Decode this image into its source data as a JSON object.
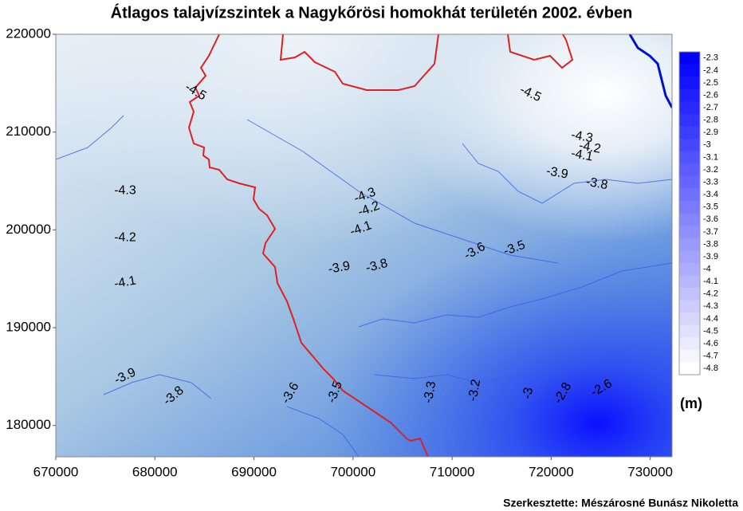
{
  "chart_data": {
    "type": "contour",
    "title": "Átlagos talajvízszintek a Nagykőrösi homokhát területén 2002. évben",
    "unit_label": "(m)",
    "credit": "Szerkesztette: Mészárosné Bunász Nikoletta",
    "xlim": [
      670000,
      732200
    ],
    "ylim": [
      176800,
      220000
    ],
    "xticks": [
      670000,
      680000,
      690000,
      700000,
      710000,
      720000,
      730000
    ],
    "yticks": [
      180000,
      190000,
      200000,
      210000,
      220000
    ],
    "colormap": [
      "#ffffff",
      "#0000ff"
    ],
    "levels": [
      -2.3,
      -2.4,
      -2.5,
      -2.6,
      -2.7,
      -2.8,
      -2.9,
      -3,
      -3.1,
      -3.2,
      -3.3,
      -3.4,
      -3.5,
      -3.6,
      -3.7,
      -3.8,
      -3.9,
      -4,
      -4.1,
      -4.2,
      -4.3,
      -4.4,
      -4.5,
      -4.6,
      -4.7,
      -4.8
    ],
    "contour_labels": [
      {
        "value": -4.5,
        "x": 684100,
        "y": 214100
      },
      {
        "value": -4.5,
        "x": 717900,
        "y": 213900
      },
      {
        "value": -4.3,
        "x": 723100,
        "y": 209500
      },
      {
        "value": -4.2,
        "x": 723900,
        "y": 208400
      },
      {
        "value": -4.1,
        "x": 723100,
        "y": 207600
      },
      {
        "value": -3.9,
        "x": 720600,
        "y": 205800
      },
      {
        "value": -3.8,
        "x": 724600,
        "y": 204700
      },
      {
        "value": -4.3,
        "x": 677000,
        "y": 204000
      },
      {
        "value": -4.3,
        "x": 701200,
        "y": 203500
      },
      {
        "value": -4.2,
        "x": 701600,
        "y": 202100
      },
      {
        "value": -4.1,
        "x": 700800,
        "y": 200100
      },
      {
        "value": -4.2,
        "x": 677000,
        "y": 199200
      },
      {
        "value": -3.9,
        "x": 698600,
        "y": 196100
      },
      {
        "value": -3.8,
        "x": 702400,
        "y": 196300
      },
      {
        "value": -3.6,
        "x": 712300,
        "y": 197800
      },
      {
        "value": -3.5,
        "x": 716300,
        "y": 198100
      },
      {
        "value": -4.1,
        "x": 677000,
        "y": 194600
      },
      {
        "value": -3.9,
        "x": 677000,
        "y": 185000
      },
      {
        "value": -3.8,
        "x": 681900,
        "y": 183000
      },
      {
        "value": -3.6,
        "x": 693700,
        "y": 183300
      },
      {
        "value": -3.5,
        "x": 698200,
        "y": 183400
      },
      {
        "value": -3.3,
        "x": 707800,
        "y": 183400
      },
      {
        "value": -3.2,
        "x": 712300,
        "y": 183600
      },
      {
        "value": -3,
        "x": 717700,
        "y": 183300
      },
      {
        "value": -2.8,
        "x": 721200,
        "y": 183300
      },
      {
        "value": -2.6,
        "x": 725100,
        "y": 183800
      }
    ]
  }
}
